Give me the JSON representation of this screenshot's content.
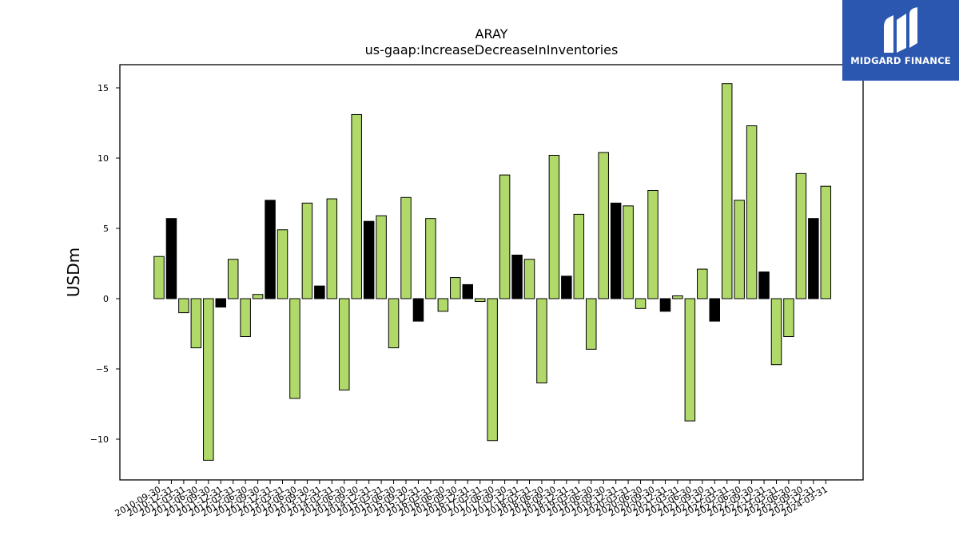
{
  "logo": {
    "text": "MIDGARD FINANCE",
    "background": "#2b57b0"
  },
  "chart_data": {
    "type": "bar",
    "title": "ARAY",
    "subtitle": "us-gaap:IncreaseDecreaseInInventories",
    "ylabel": "USDm",
    "xlabel": "",
    "ylim": [
      -12.9,
      16.6
    ],
    "yticks": [
      -10,
      -5,
      0,
      5,
      10,
      15
    ],
    "ytick_labels": [
      "−10",
      "−5",
      "0",
      "5",
      "10",
      "15"
    ],
    "grid": false,
    "colors": {
      "quarterly": "#b0d96a",
      "annual": "#000000",
      "edge": "#000000"
    },
    "categories": [
      "2010-09-30",
      "2010-12-31",
      "2011-03-31",
      "2011-06-30",
      "2011-09-30",
      "2011-12-31",
      "2012-03-31",
      "2012-06-30",
      "2012-09-30",
      "2012-12-31",
      "2013-03-31",
      "2013-06-30",
      "2013-09-30",
      "2013-12-31",
      "2014-03-31",
      "2014-06-30",
      "2014-09-30",
      "2014-12-31",
      "2015-03-31",
      "2015-06-30",
      "2015-09-30",
      "2015-12-31",
      "2016-03-31",
      "2016-06-30",
      "2016-09-30",
      "2016-12-31",
      "2017-03-31",
      "2017-06-30",
      "2017-09-30",
      "2017-12-31",
      "2018-03-31",
      "2018-06-30",
      "2018-09-30",
      "2018-12-31",
      "2019-03-31",
      "2019-06-30",
      "2019-09-30",
      "2019-12-31",
      "2020-03-31",
      "2020-06-30",
      "2020-09-30",
      "2020-12-31",
      "2021-03-31",
      "2021-06-30",
      "2021-09-30",
      "2021-12-31",
      "2022-03-31",
      "2022-06-30",
      "2022-09-30",
      "2022-12-31",
      "2023-03-31",
      "2023-06-30",
      "2023-09-30",
      "2023-12-31",
      "2024-03-31"
    ],
    "values": [
      3.0,
      5.7,
      -1.0,
      -3.5,
      -11.5,
      -0.6,
      2.8,
      -2.7,
      0.3,
      7.0,
      4.9,
      -7.1,
      6.8,
      0.9,
      7.1,
      -6.5,
      13.1,
      5.5,
      5.9,
      -3.5,
      7.2,
      -1.6,
      5.7,
      -0.9,
      1.5,
      1.0,
      -0.2,
      -10.1,
      8.8,
      3.1,
      2.8,
      -6.0,
      10.2,
      1.6,
      6.0,
      -3.6,
      10.4,
      6.8,
      6.6,
      -0.7,
      7.7,
      -0.9,
      0.2,
      -8.7,
      2.1,
      -1.6,
      15.3,
      7.0,
      12.3,
      1.9,
      -4.7,
      -2.7,
      8.9,
      5.7,
      8.0
    ],
    "annual_flags": [
      false,
      true,
      false,
      false,
      false,
      true,
      false,
      false,
      false,
      true,
      false,
      false,
      false,
      true,
      false,
      false,
      false,
      true,
      false,
      false,
      false,
      true,
      false,
      false,
      false,
      true,
      false,
      false,
      false,
      true,
      false,
      false,
      false,
      true,
      false,
      false,
      false,
      true,
      false,
      false,
      false,
      true,
      false,
      false,
      false,
      true,
      false,
      false,
      false,
      true,
      false,
      false,
      false,
      true,
      false
    ]
  }
}
